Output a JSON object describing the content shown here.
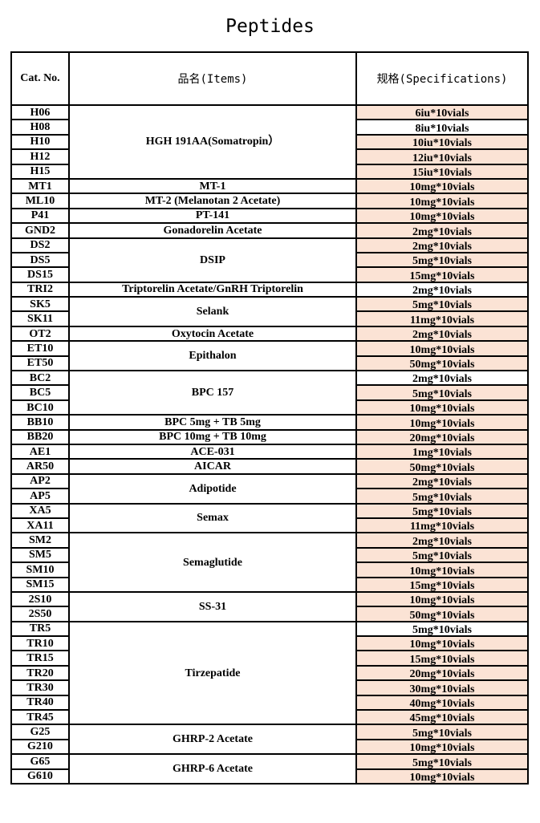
{
  "title": "Peptides",
  "headers": {
    "cat": "Cat. No.",
    "item": "品名(Items)",
    "spec": "规格(Specifications)"
  },
  "shade_color": "#fbe3d5",
  "groups": [
    {
      "item": "HGH 191AA(Somatropin）",
      "rows": [
        {
          "cat": "H06",
          "spec": "6iu*10vials",
          "shaded": true
        },
        {
          "cat": "H08",
          "spec": "8iu*10vials",
          "shaded": false
        },
        {
          "cat": "H10",
          "spec": "10iu*10vials",
          "shaded": true
        },
        {
          "cat": "H12",
          "spec": "12iu*10vials",
          "shaded": true
        },
        {
          "cat": "H15",
          "spec": "15iu*10vials",
          "shaded": true
        }
      ]
    },
    {
      "item": "MT-1",
      "rows": [
        {
          "cat": "MT1",
          "spec": "10mg*10vials",
          "shaded": true
        }
      ]
    },
    {
      "item": "MT-2 (Melanotan 2 Acetate)",
      "rows": [
        {
          "cat": "ML10",
          "spec": "10mg*10vials",
          "shaded": true
        }
      ]
    },
    {
      "item": "PT-141",
      "rows": [
        {
          "cat": "P41",
          "spec": "10mg*10vials",
          "shaded": true
        }
      ]
    },
    {
      "item": "Gonadorelin Acetate",
      "rows": [
        {
          "cat": "GND2",
          "spec": "2mg*10vials",
          "shaded": true
        }
      ]
    },
    {
      "item": "DSIP",
      "rows": [
        {
          "cat": "DS2",
          "spec": "2mg*10vials",
          "shaded": true
        },
        {
          "cat": "DS5",
          "spec": "5mg*10vials",
          "shaded": true
        },
        {
          "cat": "DS15",
          "spec": "15mg*10vials",
          "shaded": true
        }
      ]
    },
    {
      "item": "Triptorelin Acetate/GnRH Triptorelin",
      "rows": [
        {
          "cat": "TRI2",
          "spec": "2mg*10vials",
          "shaded": false
        }
      ]
    },
    {
      "item": "Selank",
      "rows": [
        {
          "cat": "SK5",
          "spec": "5mg*10vials",
          "shaded": true
        },
        {
          "cat": "SK11",
          "spec": "11mg*10vials",
          "shaded": true
        }
      ]
    },
    {
      "item": "Oxytocin Acetate",
      "rows": [
        {
          "cat": "OT2",
          "spec": "2mg*10vials",
          "shaded": true
        }
      ]
    },
    {
      "item": "Epithalon",
      "rows": [
        {
          "cat": "ET10",
          "spec": "10mg*10vials",
          "shaded": true
        },
        {
          "cat": "ET50",
          "spec": "50mg*10vials",
          "shaded": true
        }
      ]
    },
    {
      "item": "BPC 157",
      "rows": [
        {
          "cat": "BC2",
          "spec": "2mg*10vials",
          "shaded": false
        },
        {
          "cat": "BC5",
          "spec": "5mg*10vials",
          "shaded": true
        },
        {
          "cat": "BC10",
          "spec": "10mg*10vials",
          "shaded": true
        }
      ]
    },
    {
      "item": "BPC 5mg + TB 5mg",
      "rows": [
        {
          "cat": "BB10",
          "spec": "10mg*10vials",
          "shaded": true
        }
      ]
    },
    {
      "item": "BPC 10mg + TB 10mg",
      "rows": [
        {
          "cat": "BB20",
          "spec": "20mg*10vials",
          "shaded": true
        }
      ]
    },
    {
      "item": "ACE-031",
      "rows": [
        {
          "cat": "AE1",
          "spec": "1mg*10vials",
          "shaded": true
        }
      ]
    },
    {
      "item": "AICAR",
      "rows": [
        {
          "cat": "AR50",
          "spec": "50mg*10vials",
          "shaded": true
        }
      ]
    },
    {
      "item": "Adipotide",
      "rows": [
        {
          "cat": "AP2",
          "spec": "2mg*10vials",
          "shaded": true
        },
        {
          "cat": "AP5",
          "spec": "5mg*10vials",
          "shaded": true
        }
      ]
    },
    {
      "item": "Semax",
      "rows": [
        {
          "cat": "XA5",
          "spec": "5mg*10vials",
          "shaded": true
        },
        {
          "cat": "XA11",
          "spec": "11mg*10vials",
          "shaded": true
        }
      ]
    },
    {
      "item": "Semaglutide",
      "rows": [
        {
          "cat": "SM2",
          "spec": "2mg*10vials",
          "shaded": true
        },
        {
          "cat": "SM5",
          "spec": "5mg*10vials",
          "shaded": true
        },
        {
          "cat": "SM10",
          "spec": "10mg*10vials",
          "shaded": true
        },
        {
          "cat": "SM15",
          "spec": "15mg*10vials",
          "shaded": true
        }
      ]
    },
    {
      "item": "SS-31",
      "rows": [
        {
          "cat": "2S10",
          "spec": "10mg*10vials",
          "shaded": true
        },
        {
          "cat": "2S50",
          "spec": "50mg*10vials",
          "shaded": true
        }
      ]
    },
    {
      "item": "Tirzepatide",
      "rows": [
        {
          "cat": "TR5",
          "spec": "5mg*10vials",
          "shaded": false
        },
        {
          "cat": "TR10",
          "spec": "10mg*10vials",
          "shaded": true
        },
        {
          "cat": "TR15",
          "spec": "15mg*10vials",
          "shaded": true
        },
        {
          "cat": "TR20",
          "spec": "20mg*10vials",
          "shaded": true
        },
        {
          "cat": "TR30",
          "spec": "30mg*10vials",
          "shaded": true
        },
        {
          "cat": "TR40",
          "spec": "40mg*10vials",
          "shaded": true
        },
        {
          "cat": "TR45",
          "spec": "45mg*10vials",
          "shaded": true
        }
      ]
    },
    {
      "item": "GHRP-2 Acetate",
      "rows": [
        {
          "cat": "G25",
          "spec": "5mg*10vials",
          "shaded": true
        },
        {
          "cat": "G210",
          "spec": "10mg*10vials",
          "shaded": true
        }
      ]
    },
    {
      "item": "GHRP-6 Acetate",
      "rows": [
        {
          "cat": "G65",
          "spec": "5mg*10vials",
          "shaded": true
        },
        {
          "cat": "G610",
          "spec": "10mg*10vials",
          "shaded": true
        }
      ]
    }
  ]
}
